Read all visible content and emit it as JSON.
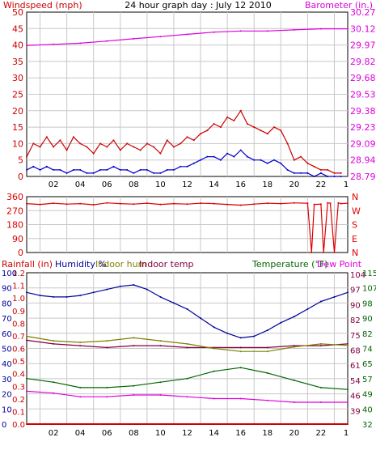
{
  "title": "24 hour graph day : July 12 2010",
  "x_axis": {
    "ticks": [
      "02",
      "04",
      "06",
      "08",
      "10",
      "12",
      "14",
      "16",
      "18",
      "20",
      "22",
      "1"
    ],
    "range_hours": [
      0,
      24
    ]
  },
  "colors": {
    "windspeed": "#cc0000",
    "gust_avg": "#0000cc",
    "barometer": "#dd00dd",
    "direction": "#dd0000",
    "humidity": "#000099",
    "indoor_hum": "#808000",
    "indoor_temp": "#800040",
    "temperature": "#006600",
    "dew_point": "#dd00dd",
    "rainfall": "#cc0000",
    "grid": "#c8c8c8"
  },
  "chart_data": [
    {
      "type": "line",
      "panel": "wind-barometer",
      "left_label": "Windspeed (mph)",
      "right_label": "Barometer (in.)",
      "left_ticks": [
        "0",
        "5",
        "10",
        "15",
        "20",
        "25",
        "30",
        "35",
        "40",
        "45",
        "50"
      ],
      "right_ticks": [
        "28.79",
        "28.94",
        "29.09",
        "29.23",
        "29.38",
        "29.53",
        "29.68",
        "29.82",
        "29.97",
        "30.12",
        "30.27"
      ],
      "ylim_left": [
        0,
        50
      ],
      "ylim_right": [
        28.79,
        30.27
      ],
      "grid": true,
      "series": [
        {
          "key": "wind_high",
          "axis": "left",
          "x": [
            0,
            0.5,
            1,
            1.5,
            2,
            2.5,
            3,
            3.5,
            4,
            4.5,
            5,
            5.5,
            6,
            6.5,
            7,
            7.5,
            8,
            8.5,
            9,
            9.5,
            10,
            10.5,
            11,
            11.5,
            12,
            12.5,
            13,
            13.5,
            14,
            14.5,
            15,
            15.5,
            16,
            16.5,
            17,
            17.5,
            18,
            18.5,
            19,
            19.5,
            20,
            20.5,
            21,
            21.5,
            22,
            22.5,
            23,
            23.5
          ],
          "values": [
            6,
            10,
            9,
            12,
            9,
            11,
            8,
            12,
            10,
            9,
            7,
            10,
            9,
            11,
            8,
            10,
            9,
            8,
            10,
            9,
            7,
            11,
            9,
            10,
            12,
            11,
            13,
            14,
            16,
            15,
            18,
            17,
            20,
            16,
            15,
            14,
            13,
            15,
            14,
            10,
            5,
            6,
            4,
            3,
            2,
            2,
            1,
            1
          ]
        },
        {
          "key": "wind_avg",
          "axis": "left",
          "x": [
            0,
            0.5,
            1,
            1.5,
            2,
            2.5,
            3,
            3.5,
            4,
            4.5,
            5,
            5.5,
            6,
            6.5,
            7,
            7.5,
            8,
            8.5,
            9,
            9.5,
            10,
            10.5,
            11,
            11.5,
            12,
            12.5,
            13,
            13.5,
            14,
            14.5,
            15,
            15.5,
            16,
            16.5,
            17,
            17.5,
            18,
            18.5,
            19,
            19.5,
            20,
            20.5,
            21,
            21.5,
            22,
            22.5,
            23,
            23.5
          ],
          "values": [
            2,
            3,
            2,
            3,
            2,
            2,
            1,
            2,
            2,
            1,
            1,
            2,
            2,
            3,
            2,
            2,
            1,
            2,
            2,
            1,
            1,
            2,
            2,
            3,
            3,
            4,
            5,
            6,
            6,
            5,
            7,
            6,
            8,
            6,
            5,
            5,
            4,
            5,
            4,
            2,
            1,
            1,
            1,
            0,
            1,
            0,
            0,
            0
          ]
        },
        {
          "key": "barometer",
          "axis": "right",
          "x": [
            0,
            2,
            4,
            6,
            8,
            10,
            12,
            14,
            16,
            18,
            20,
            22,
            24
          ],
          "values": [
            29.97,
            29.98,
            29.99,
            30.01,
            30.03,
            30.05,
            30.07,
            30.09,
            30.1,
            30.1,
            30.11,
            30.12,
            30.12
          ]
        }
      ]
    },
    {
      "type": "line",
      "panel": "wind-direction",
      "left_ticks": [
        "0",
        "90",
        "180",
        "270",
        "360"
      ],
      "right_ticks": [
        "N",
        "E",
        "S",
        "W",
        "N"
      ],
      "ylim": [
        0,
        360
      ],
      "grid": true,
      "series": [
        {
          "key": "direction",
          "x": [
            0,
            1,
            2,
            3,
            4,
            5,
            6,
            7,
            8,
            9,
            10,
            11,
            12,
            13,
            14,
            15,
            16,
            17,
            18,
            19,
            20,
            21,
            21.3,
            21.5,
            22,
            22.2,
            22.5,
            22.7,
            23,
            23.3,
            23.5,
            24
          ],
          "values": [
            315,
            310,
            318,
            312,
            315,
            308,
            320,
            315,
            312,
            318,
            310,
            315,
            312,
            318,
            315,
            310,
            305,
            312,
            318,
            315,
            320,
            318,
            0,
            310,
            312,
            0,
            320,
            318,
            0,
            320,
            315,
            318
          ]
        }
      ]
    },
    {
      "type": "line",
      "panel": "temperature-humidity",
      "legend": [
        "Rainfall (in)",
        "Humidity %",
        "Indoor hum",
        "Indoor temp",
        "Temperature (°F)",
        "Dew Point"
      ],
      "rain_ticks": [
        "0.0",
        "0.1",
        "0.2",
        "0.3",
        "0.4",
        "0.5",
        "0.6",
        "0.7",
        "0.8",
        "0.9",
        "1.0",
        "1.1",
        "1.2"
      ],
      "pct_ticks": [
        "0",
        "10",
        "20",
        "30",
        "40",
        "50",
        "60",
        "70",
        "80",
        "90",
        "100"
      ],
      "temp_ticks_a": [
        "39",
        "46",
        "54",
        "61",
        "68",
        "75",
        "82",
        "90",
        "97",
        "104"
      ],
      "temp_ticks_b": [
        "32",
        "40",
        "49",
        "57",
        "65",
        "74",
        "82",
        "90",
        "98",
        "107",
        "115"
      ],
      "ylim_pct": [
        0,
        100
      ],
      "ylim_temp": [
        32,
        115
      ],
      "grid": true,
      "series": [
        {
          "key": "humidity",
          "axis": "pct",
          "x": [
            0,
            1,
            2,
            3,
            4,
            5,
            6,
            7,
            8,
            9,
            10,
            11,
            12,
            13,
            14,
            15,
            16,
            17,
            18,
            19,
            20,
            21,
            22,
            23,
            24
          ],
          "values": [
            87,
            85,
            84,
            84,
            85,
            87,
            89,
            91,
            92,
            89,
            84,
            80,
            76,
            70,
            64,
            60,
            57,
            58,
            62,
            67,
            71,
            76,
            81,
            84,
            87
          ]
        },
        {
          "key": "indoor_temp",
          "axis": "temp",
          "x": [
            0,
            2,
            4,
            6,
            8,
            10,
            12,
            14,
            16,
            18,
            20,
            22,
            24
          ],
          "values": [
            78,
            76,
            75,
            74,
            75,
            75,
            74,
            74,
            74,
            74,
            75,
            75,
            76
          ]
        },
        {
          "key": "indoor_hum",
          "axis": "pct",
          "x": [
            0,
            2,
            4,
            6,
            8,
            10,
            12,
            14,
            16,
            18,
            20,
            22,
            24
          ],
          "values": [
            58,
            55,
            54,
            55,
            57,
            55,
            53,
            50,
            48,
            48,
            51,
            53,
            52
          ]
        },
        {
          "key": "temperature",
          "axis": "temp",
          "x": [
            0,
            2,
            4,
            6,
            8,
            10,
            12,
            14,
            16,
            18,
            20,
            22,
            24
          ],
          "values": [
            57,
            55,
            52,
            52,
            53,
            55,
            57,
            61,
            63,
            60,
            56,
            52,
            51
          ]
        },
        {
          "key": "dew_point",
          "axis": "temp",
          "x": [
            0,
            2,
            4,
            6,
            8,
            10,
            12,
            14,
            16,
            18,
            20,
            22,
            24
          ],
          "values": [
            50,
            49,
            47,
            47,
            48,
            48,
            47,
            46,
            46,
            45,
            44,
            44,
            44
          ]
        },
        {
          "key": "rainfall",
          "axis": "rain",
          "x": [
            0,
            24
          ],
          "values": [
            0,
            0
          ]
        }
      ]
    }
  ]
}
